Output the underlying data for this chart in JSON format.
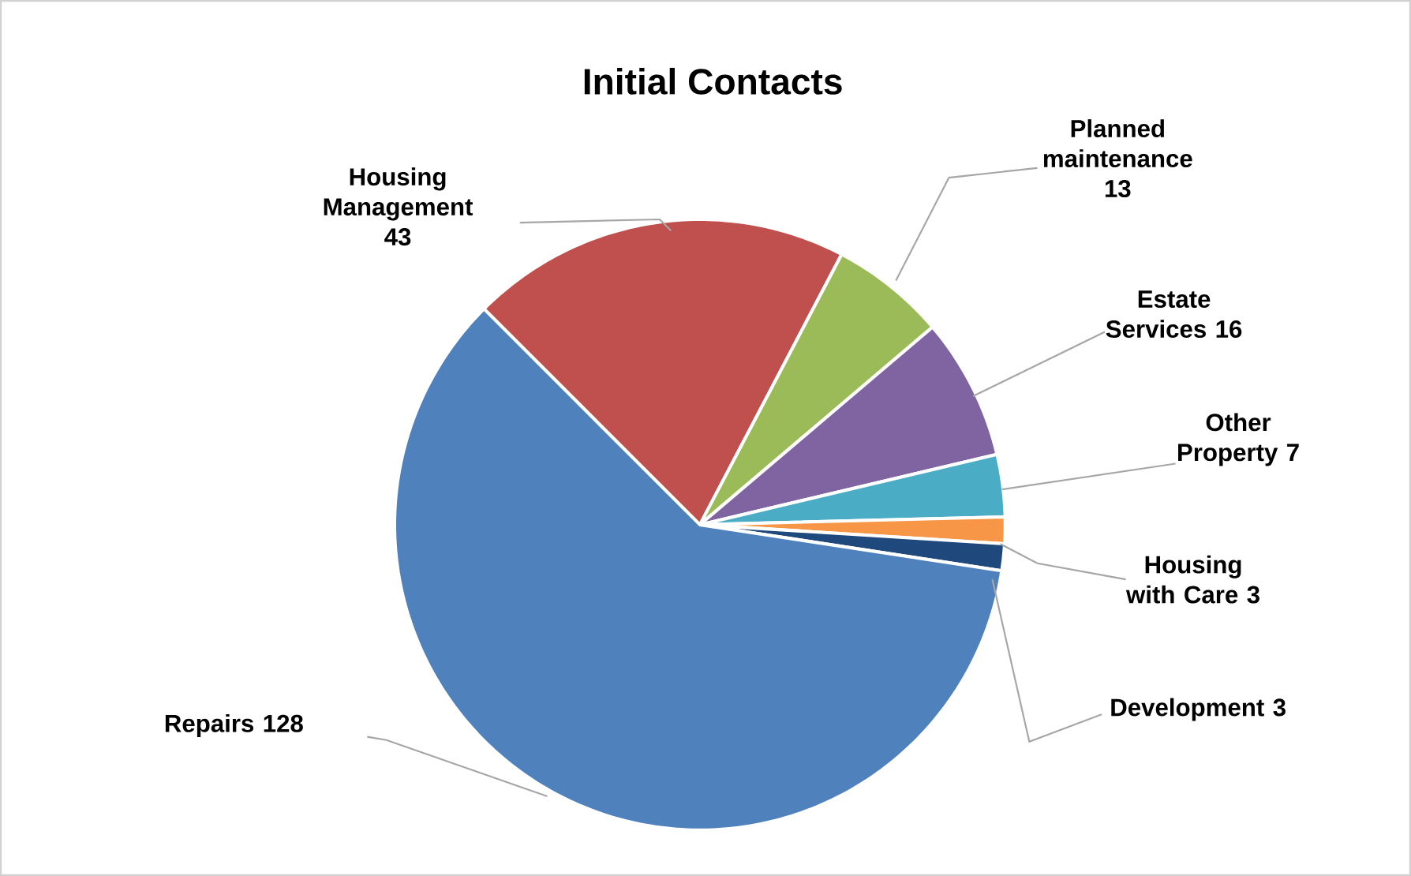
{
  "chart_data": {
    "type": "pie",
    "title": "Initial Contacts",
    "categories": [
      "Housing Management",
      "Planned maintenance",
      "Estate Services",
      "Other Property",
      "Housing with Care",
      "Development",
      "Repairs"
    ],
    "values": [
      43,
      13,
      16,
      7,
      3,
      3,
      128
    ],
    "value_labels": [
      "43",
      "13",
      "16",
      "7",
      "3",
      "3",
      "128"
    ],
    "colors": [
      "#c0504d",
      "#9bbb59",
      "#8064a2",
      "#4bacc6",
      "#f79646",
      "#1f497d",
      "#4f81bd"
    ]
  }
}
